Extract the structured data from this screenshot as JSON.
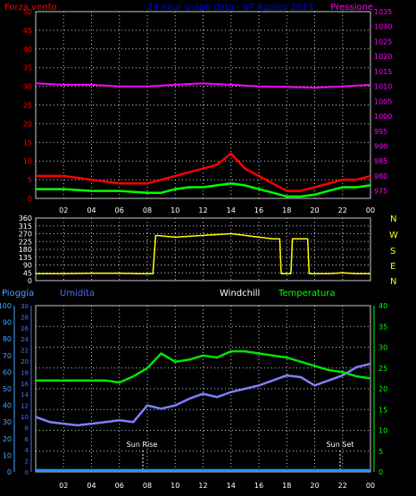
{
  "header": {
    "title": "24 hour graph data - 07 Agosto 2013",
    "left_label": "Forza vento",
    "right_label": "Pressione"
  },
  "dir_labels": [
    "N",
    "W",
    "S",
    "E",
    "N"
  ],
  "lower_labels": {
    "pioggia": "Pioggia",
    "umidita": "Umidita",
    "windchill": "Windchill",
    "temperatura": "Temperatura"
  },
  "events": {
    "sunrise": "Sun Rise",
    "sunset": "Sun Set"
  },
  "colors": {
    "bg": "#000000",
    "grid": "#c8c8c8",
    "gust": "#ff0000",
    "wind": "#00ff00",
    "pressure": "#ff00ff",
    "direction": "#ffff00",
    "humidity": "#7f7fff",
    "temperature": "#00e600",
    "rain": "#1e90ff",
    "left_axis": "#ff0000",
    "right_axis": "#ff00ff",
    "title": "#0000ff",
    "pioggia": "#4aa3ff",
    "umidita": "#4a6fff",
    "windchill": "#ffffff",
    "temp_label": "#00ff00"
  },
  "chart_data": [
    {
      "type": "line",
      "title": "24 hour graph data - 07 Agosto 2013",
      "ylabel": "Forza vento",
      "y2label": "Pressione",
      "xlim": [
        0,
        24
      ],
      "x_ticks": [
        "02",
        "04",
        "06",
        "08",
        "10",
        "12",
        "14",
        "16",
        "18",
        "20",
        "22",
        "00"
      ],
      "ylim": [
        0,
        50
      ],
      "y_ticks": [
        0,
        5,
        10,
        15,
        20,
        25,
        30,
        35,
        40,
        45,
        50
      ],
      "y2lim": [
        972.5,
        1035
      ],
      "y2_ticks": [
        975,
        980,
        985,
        990,
        995,
        1000,
        1005,
        1010,
        1015,
        1020,
        1025,
        1030,
        1035
      ],
      "grid": true,
      "series": [
        {
          "axis": "y2",
          "x": [
            0,
            2,
            4,
            6,
            8,
            10,
            12,
            14,
            16,
            18,
            20,
            22,
            24
          ],
          "values": [
            1011,
            1010.5,
            1010.5,
            1010,
            1010,
            1010.5,
            1011,
            1010.5,
            1010,
            1009.8,
            1009.5,
            1010,
            1010.5
          ]
        },
        {
          "axis": "y",
          "x": [
            0,
            2,
            4,
            6,
            8,
            9,
            10,
            11,
            12,
            13,
            14,
            15,
            16,
            17,
            18,
            19,
            20,
            21,
            22,
            23,
            24
          ],
          "values": [
            6,
            6,
            5,
            4,
            4,
            5,
            6,
            7,
            8,
            9,
            12,
            8,
            6,
            4,
            2,
            2,
            3,
            4,
            5,
            5,
            6
          ]
        },
        {
          "axis": "y",
          "x": [
            0,
            2,
            4,
            6,
            8,
            9,
            10,
            11,
            12,
            13,
            14,
            15,
            16,
            17,
            18,
            19,
            20,
            21,
            22,
            23,
            24
          ],
          "values": [
            2.5,
            2.5,
            2,
            2,
            1.5,
            1.5,
            2.5,
            3,
            3,
            3.5,
            4,
            3.5,
            2.5,
            1.5,
            0.5,
            0.5,
            1,
            2,
            3,
            3,
            3.5
          ]
        }
      ]
    },
    {
      "type": "line",
      "xlim": [
        0,
        24
      ],
      "ylim": [
        0,
        360
      ],
      "y_ticks": [
        0,
        45,
        90,
        135,
        180,
        225,
        270,
        315,
        360
      ],
      "grid": true,
      "series": [
        {
          "x": [
            0,
            2,
            4,
            6,
            7.5,
            8.4,
            8.6,
            10,
            12,
            14,
            15,
            16,
            17,
            17.5,
            17.6,
            18.3,
            18.4,
            19.5,
            19.6,
            21,
            22,
            23,
            24
          ],
          "values": [
            40,
            40,
            42,
            42,
            40,
            40,
            260,
            250,
            260,
            270,
            260,
            250,
            240,
            240,
            40,
            40,
            240,
            240,
            40,
            40,
            45,
            40,
            40
          ]
        }
      ]
    },
    {
      "type": "line",
      "xlim": [
        0,
        24
      ],
      "x_ticks": [
        "02",
        "04",
        "06",
        "08",
        "10",
        "12",
        "14",
        "16",
        "18",
        "20",
        "22",
        "00"
      ],
      "y_left_ticks": [
        0,
        10,
        20,
        30,
        40,
        50,
        60,
        70,
        80,
        90,
        100
      ],
      "y_left2_ticks": [
        0,
        2,
        4,
        6,
        8,
        10,
        12,
        14,
        16,
        18,
        20,
        22,
        24,
        26,
        28,
        30
      ],
      "y_right_ticks": [
        0,
        5,
        10,
        15,
        20,
        25,
        30,
        35,
        40
      ],
      "ylim": [
        0,
        100
      ],
      "y2lim": [
        0,
        40
      ],
      "grid": true,
      "series": [
        {
          "axis": "y",
          "x": [
            0,
            1,
            2,
            3,
            4,
            5,
            6,
            7,
            8,
            9,
            10,
            11,
            12,
            13,
            14,
            15,
            16,
            17,
            18,
            19,
            20,
            21,
            22,
            23,
            24
          ],
          "values": [
            33,
            30,
            29,
            28,
            29,
            30,
            31,
            30,
            40,
            38,
            40,
            44,
            47,
            45,
            48,
            50,
            52,
            55,
            58,
            57,
            52,
            55,
            58,
            63,
            65
          ]
        },
        {
          "axis": "y2",
          "x": [
            0,
            1,
            2,
            3,
            4,
            5,
            6,
            7,
            8,
            9,
            10,
            11,
            12,
            13,
            14,
            15,
            16,
            17,
            18,
            19,
            20,
            21,
            22,
            23,
            24
          ],
          "values": [
            22,
            22,
            22,
            22,
            22,
            22,
            21.5,
            23,
            25,
            28.5,
            26.5,
            27,
            28,
            27.5,
            29,
            29,
            28.5,
            28,
            27.5,
            26.5,
            25.5,
            24.5,
            24,
            23,
            22.5
          ]
        },
        {
          "axis": "y",
          "x": [
            0,
            24
          ],
          "values": [
            0,
            0
          ]
        }
      ]
    }
  ]
}
